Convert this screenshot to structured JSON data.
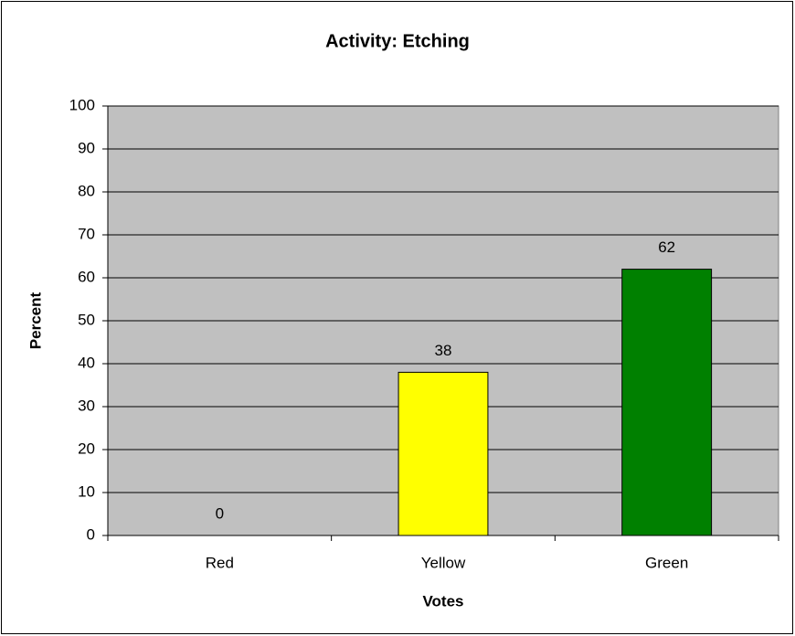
{
  "chart_data": {
    "type": "bar",
    "title": "Activity: Etching",
    "x_label": "Votes",
    "y_label": "Percent",
    "categories": [
      "Red",
      "Yellow",
      "Green"
    ],
    "values": [
      0,
      38,
      62
    ],
    "colors": [
      "#ff0000",
      "#ffff00",
      "#008000"
    ],
    "ylim": [
      0,
      100
    ],
    "yticks": [
      0,
      10,
      20,
      30,
      40,
      50,
      60,
      70,
      80,
      90,
      100
    ],
    "grid": true
  }
}
